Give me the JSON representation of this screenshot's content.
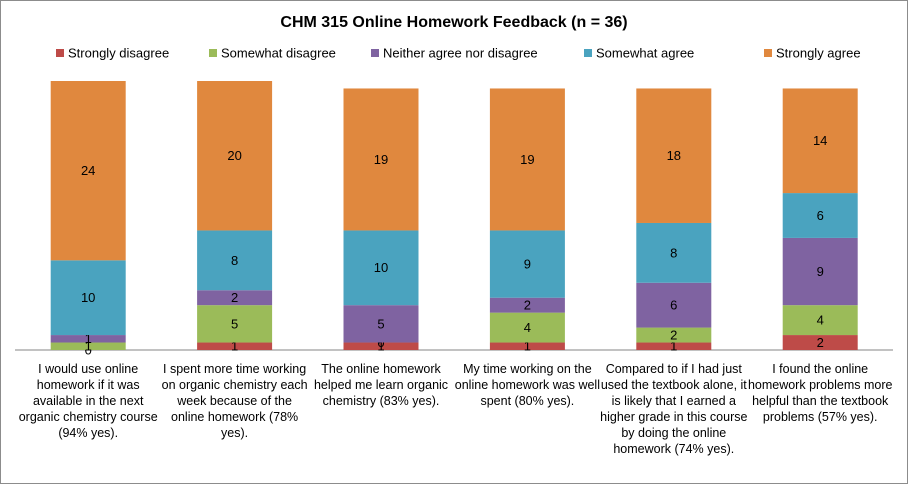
{
  "chart_data": {
    "type": "stacked_bar",
    "title": "CHM 315 Online Homework Feedback (n = 36)",
    "categories": [
      "I would use online homework if it was available in the next organic chemistry course (94% yes).",
      "I spent more time working on organic chemistry each week because of the online homework (78% yes).",
      "The online homework helped me learn organic chemistry (83% yes).",
      "My time working on the online homework was well spent (80% yes).",
      "Compared to if I had just used the textbook alone, it is likely that I earned a higher grade in this course by doing the online homework (74% yes).",
      "I found the online homework problems more helpful than the textbook problems (57% yes)."
    ],
    "series": [
      {
        "name": "Strongly disagree",
        "color": "#be4b48",
        "values": [
          0,
          1,
          1,
          1,
          1,
          2
        ]
      },
      {
        "name": "Somewhat disagree",
        "color": "#9bbb59",
        "values": [
          1,
          5,
          0,
          4,
          2,
          4
        ]
      },
      {
        "name": "Neither agree nor disagree",
        "color": "#7f63a1",
        "values": [
          1,
          2,
          5,
          2,
          6,
          9
        ]
      },
      {
        "name": "Somewhat agree",
        "color": "#4aa3bf",
        "values": [
          10,
          8,
          10,
          9,
          8,
          6
        ]
      },
      {
        "name": "Strongly agree",
        "color": "#e0883e",
        "values": [
          24,
          20,
          19,
          19,
          18,
          14
        ]
      }
    ],
    "ylim": [
      0,
      36
    ]
  }
}
